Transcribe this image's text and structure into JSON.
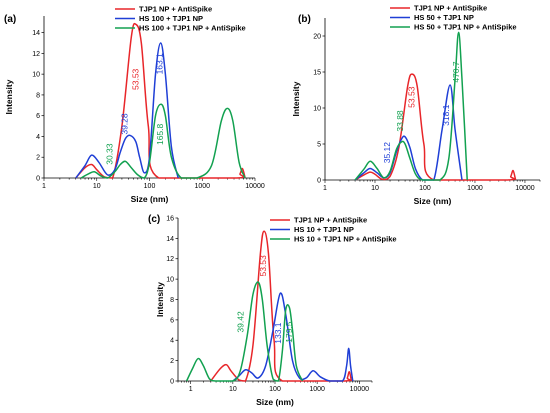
{
  "colors": {
    "red": "#e8262a",
    "blue": "#1f3fd6",
    "green": "#12a150",
    "axis": "#000000"
  },
  "chart_data": [
    {
      "id": "a",
      "panel_label": "(a)",
      "type": "line",
      "xscale": "log",
      "xlim": [
        1,
        10000
      ],
      "ylim": [
        0,
        15.6
      ],
      "xticks": [
        1,
        10,
        100,
        1000,
        10000
      ],
      "yticks": [
        0,
        2,
        4,
        6,
        8,
        10,
        12,
        14
      ],
      "xlabel": "Size (nm)",
      "ylabel": "Intensity",
      "legend_position": "top-right",
      "series": [
        {
          "name": "TJP1 NP + AntiSpike",
          "color": "red",
          "x": [
            4,
            6,
            8,
            10,
            14,
            20,
            30,
            45,
            55,
            70,
            95,
            150,
            4500,
            5200,
            5800,
            6500
          ],
          "y": [
            0,
            1,
            1.3,
            0.8,
            0.1,
            0,
            5,
            13.5,
            14.8,
            13,
            5,
            0,
            0,
            0.4,
            0.9,
            0
          ]
        },
        {
          "name": "HS 100 + TJP1 NP",
          "color": "blue",
          "x": [
            4,
            6,
            8,
            11,
            16,
            22,
            28,
            35,
            43,
            55,
            65,
            80,
            100,
            130,
            163,
            200,
            260,
            350
          ],
          "y": [
            0,
            1.2,
            2.2,
            1.5,
            0.3,
            0.8,
            2.5,
            3.8,
            4.1,
            3.5,
            2,
            0.5,
            2,
            10,
            13,
            10,
            3,
            0
          ]
        },
        {
          "name": "HS 100 + TJP1 NP + AntiSpike",
          "color": "green",
          "x": [
            5,
            7,
            9,
            12,
            16,
            22,
            28,
            35,
            45,
            60,
            80,
            100,
            130,
            165,
            200,
            260,
            400,
            800,
            1500,
            2300,
            3000,
            3800,
            5000,
            6500
          ],
          "y": [
            0,
            0.4,
            0.6,
            0.2,
            0,
            0.6,
            1.3,
            1.6,
            1,
            0.3,
            0,
            1.5,
            6,
            7.1,
            6,
            2,
            0,
            0,
            1.2,
            5.5,
            6.7,
            5.5,
            1.5,
            0
          ]
        }
      ],
      "annotations": [
        {
          "text": "53.53",
          "color": "red",
          "x": 62,
          "y": 9.5
        },
        {
          "text": "163.1",
          "color": "blue",
          "x": 175,
          "y": 11
        },
        {
          "text": "39.28",
          "color": "blue",
          "x": 38,
          "y": 5.2
        },
        {
          "text": "30.33",
          "color": "green",
          "x": 20,
          "y": 2.3
        },
        {
          "text": "165.8",
          "color": "green",
          "x": 180,
          "y": 4.2
        }
      ]
    },
    {
      "id": "b",
      "panel_label": "(b)",
      "type": "line",
      "xscale": "log",
      "xlim": [
        1,
        20000
      ],
      "ylim": [
        0,
        22.5
      ],
      "xticks": [
        1,
        10,
        100,
        1000,
        10000
      ],
      "yticks": [
        0,
        5,
        10,
        15,
        20
      ],
      "xlabel": "Size (nm)",
      "ylabel": "Intensity",
      "legend_position": "top-right",
      "series": [
        {
          "name": "TJP1 NP + AntiSpike",
          "color": "red",
          "x": [
            4,
            6,
            8,
            10,
            14,
            20,
            30,
            45,
            55,
            70,
            95,
            150,
            4500,
            5200,
            5800,
            6500
          ],
          "y": [
            0,
            0.7,
            1.1,
            0.8,
            0.1,
            0.5,
            4.5,
            13,
            14.7,
            13,
            5,
            0,
            0,
            0.5,
            1.3,
            0
          ]
        },
        {
          "name": "HS 50 + TJP1 NP",
          "color": "blue",
          "x": [
            4,
            6,
            8,
            11,
            15,
            20,
            27,
            34,
            40,
            50,
            65,
            90,
            150,
            220,
            318,
            400,
            550
          ],
          "y": [
            0,
            1,
            1.6,
            1,
            0.3,
            1,
            4,
            5.7,
            6,
            4.5,
            1.5,
            0,
            0,
            7,
            13.2,
            7,
            0
          ]
        },
        {
          "name": "HS 50 + TJP1 NP + AntiSpike",
          "color": "green",
          "x": [
            4,
            6,
            8,
            11,
            15,
            20,
            27,
            34,
            40,
            50,
            65,
            90,
            200,
            300,
            400,
            470,
            550,
            700
          ],
          "y": [
            0,
            1.5,
            2.6,
            1.6,
            0.3,
            1.2,
            4.3,
            5.3,
            5,
            3,
            0.8,
            0,
            0,
            3,
            14,
            20.5,
            14,
            0
          ]
        }
      ],
      "annotations": [
        {
          "text": "53.53",
          "color": "red",
          "x": 62,
          "y": 11.5
        },
        {
          "text": "318.1",
          "color": "blue",
          "x": 300,
          "y": 9
        },
        {
          "text": "470.7",
          "color": "green",
          "x": 475,
          "y": 15
        },
        {
          "text": "35.12",
          "color": "blue",
          "x": 20,
          "y": 3.8
        },
        {
          "text": "33.88",
          "color": "green",
          "x": 36,
          "y": 8.2
        }
      ]
    },
    {
      "id": "c",
      "panel_label": "(c)",
      "type": "line",
      "xscale": "log",
      "xlim": [
        0.5,
        20000
      ],
      "ylim": [
        0,
        16
      ],
      "xticks": [
        1,
        10,
        100,
        1000,
        10000
      ],
      "yticks": [
        0,
        2,
        4,
        6,
        8,
        10,
        12,
        14,
        16
      ],
      "xlabel": "Size (nm)",
      "ylabel": "Intensity",
      "legend_position": "top-right",
      "series": [
        {
          "name": "TJP1 NP + AntiSpike",
          "color": "red",
          "x": [
            3,
            5,
            7,
            9,
            14,
            20,
            30,
            45,
            55,
            70,
            95,
            150,
            4500,
            5200,
            5800,
            6500
          ],
          "y": [
            0,
            1.2,
            1.6,
            1,
            0.1,
            0,
            3.5,
            12.5,
            14.7,
            12.5,
            4,
            0,
            0,
            0.3,
            0.9,
            0
          ]
        },
        {
          "name": "HS 10 + TJP1 NP",
          "color": "blue",
          "x": [
            10,
            14,
            20,
            28,
            40,
            60,
            90,
            133,
            180,
            260,
            380,
            550,
            800,
            1200,
            2000,
            4000,
            5000,
            5600,
            6200,
            7000
          ],
          "y": [
            0,
            0.5,
            1.1,
            0.8,
            0.3,
            1.5,
            5,
            8.6,
            6.5,
            2,
            0.3,
            0.3,
            1,
            0.4,
            0,
            0,
            1.5,
            3.2,
            1.5,
            0
          ]
        },
        {
          "name": "HS 10 + TJP1 NP + AntiSpike",
          "color": "green",
          "x": [
            0.8,
            1.1,
            1.5,
            2,
            2.8,
            4,
            10,
            15,
            22,
            30,
            40,
            50,
            65,
            90,
            120,
            150,
            180,
            220,
            260,
            320,
            450
          ],
          "y": [
            0,
            1.2,
            2.2,
            1.5,
            0.2,
            0,
            0,
            1,
            4.5,
            8.5,
            9.7,
            8,
            3.5,
            0.2,
            0,
            3,
            7,
            7.2,
            5,
            1.5,
            0
          ]
        }
      ],
      "annotations": [
        {
          "text": "53.53",
          "color": "red",
          "x": 62,
          "y": 11.3
        },
        {
          "text": "133.1",
          "color": "blue",
          "x": 140,
          "y": 4.7
        },
        {
          "text": "39.42",
          "color": "green",
          "x": 18,
          "y": 5.8
        },
        {
          "text": "179.5",
          "color": "green",
          "x": 255,
          "y": 4.8
        }
      ]
    }
  ]
}
